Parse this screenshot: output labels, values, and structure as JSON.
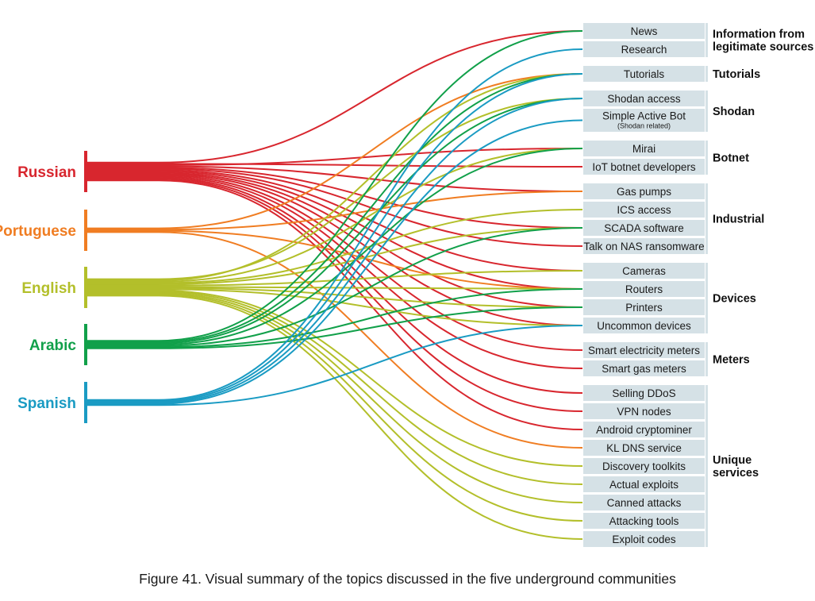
{
  "colors": {
    "Russian": "#d8262e",
    "Portuguese": "#f07d22",
    "English": "#b3bf2a",
    "Arabic": "#11a04a",
    "Spanish": "#1a9bc3",
    "topic_box": "#d5e1e6"
  },
  "languages": [
    "Russian",
    "Portuguese",
    "English",
    "Arabic",
    "Spanish"
  ],
  "topics": [
    {
      "id": "news",
      "label": "News"
    },
    {
      "id": "research",
      "label": "Research"
    },
    {
      "id": "tutorials",
      "label": "Tutorials"
    },
    {
      "id": "shodan-access",
      "label": "Shodan access"
    },
    {
      "id": "simple-active-bot",
      "label": "Simple Active Bot",
      "sub": "(Shodan related)"
    },
    {
      "id": "mirai",
      "label": "Mirai"
    },
    {
      "id": "iot-botnet-developers",
      "label": "IoT botnet developers"
    },
    {
      "id": "gas-pumps",
      "label": "Gas pumps"
    },
    {
      "id": "ics-access",
      "label": "ICS access"
    },
    {
      "id": "scada-software",
      "label": "SCADA software"
    },
    {
      "id": "talk-on-nas-ransomware",
      "label": "Talk on NAS ransomware"
    },
    {
      "id": "cameras",
      "label": "Cameras"
    },
    {
      "id": "routers",
      "label": "Routers"
    },
    {
      "id": "printers",
      "label": "Printers"
    },
    {
      "id": "uncommon-devices",
      "label": "Uncommon devices"
    },
    {
      "id": "smart-electricity-meters",
      "label": "Smart electricity meters"
    },
    {
      "id": "smart-gas-meters",
      "label": "Smart gas meters"
    },
    {
      "id": "selling-ddos",
      "label": "Selling DDoS"
    },
    {
      "id": "vpn-nodes",
      "label": "VPN nodes"
    },
    {
      "id": "android-cryptominer",
      "label": "Android cryptominer"
    },
    {
      "id": "kl-dns-service",
      "label": "KL DNS service"
    },
    {
      "id": "discovery-toolkits",
      "label": "Discovery toolkits"
    },
    {
      "id": "actual-exploits",
      "label": "Actual exploits"
    },
    {
      "id": "canned-attacks",
      "label": "Canned attacks"
    },
    {
      "id": "attacking-tools",
      "label": "Attacking tools"
    },
    {
      "id": "exploit-codes",
      "label": "Exploit codes"
    }
  ],
  "groups": [
    {
      "id": "info",
      "label": [
        "Information from",
        "legitimate sources"
      ],
      "topics": [
        "news",
        "research"
      ]
    },
    {
      "id": "tutorials",
      "label": [
        "Tutorials"
      ],
      "topics": [
        "tutorials"
      ]
    },
    {
      "id": "shodan",
      "label": [
        "Shodan"
      ],
      "topics": [
        "shodan-access",
        "simple-active-bot"
      ]
    },
    {
      "id": "botnet",
      "label": [
        "Botnet"
      ],
      "topics": [
        "mirai",
        "iot-botnet-developers"
      ]
    },
    {
      "id": "industrial",
      "label": [
        "Industrial"
      ],
      "topics": [
        "gas-pumps",
        "ics-access",
        "scada-software",
        "talk-on-nas-ransomware"
      ]
    },
    {
      "id": "devices",
      "label": [
        "Devices"
      ],
      "topics": [
        "cameras",
        "routers",
        "printers",
        "uncommon-devices"
      ]
    },
    {
      "id": "meters",
      "label": [
        "Meters"
      ],
      "topics": [
        "smart-electricity-meters",
        "smart-gas-meters"
      ]
    },
    {
      "id": "unique",
      "label": [
        "Unique",
        "services"
      ],
      "topics": [
        "selling-ddos",
        "vpn-nodes",
        "android-cryptominer",
        "kl-dns-service",
        "discovery-toolkits",
        "actual-exploits",
        "canned-attacks",
        "attacking-tools",
        "exploit-codes"
      ]
    }
  ],
  "links": [
    {
      "from": "Russian",
      "to": [
        "news",
        "iot-botnet-developers",
        "mirai",
        "gas-pumps",
        "scada-software",
        "talk-on-nas-ransomware",
        "cameras",
        "routers",
        "printers",
        "uncommon-devices",
        "smart-electricity-meters",
        "smart-gas-meters",
        "selling-ddos",
        "vpn-nodes",
        "android-cryptominer"
      ]
    },
    {
      "from": "Portuguese",
      "to": [
        "tutorials",
        "gas-pumps",
        "routers",
        "kl-dns-service"
      ]
    },
    {
      "from": "English",
      "to": [
        "shodan-access",
        "tutorials",
        "mirai",
        "ics-access",
        "scada-software",
        "cameras",
        "routers",
        "printers",
        "uncommon-devices",
        "discovery-toolkits",
        "actual-exploits",
        "canned-attacks",
        "attacking-tools",
        "exploit-codes"
      ]
    },
    {
      "from": "Arabic",
      "to": [
        "news",
        "tutorials",
        "shodan-access",
        "mirai",
        "scada-software",
        "routers",
        "printers"
      ]
    },
    {
      "from": "Spanish",
      "to": [
        "research",
        "tutorials",
        "shodan-access",
        "simple-active-bot",
        "uncommon-devices"
      ]
    }
  ],
  "caption": "Figure 41. Visual summary of the topics discussed in the five underground communities"
}
